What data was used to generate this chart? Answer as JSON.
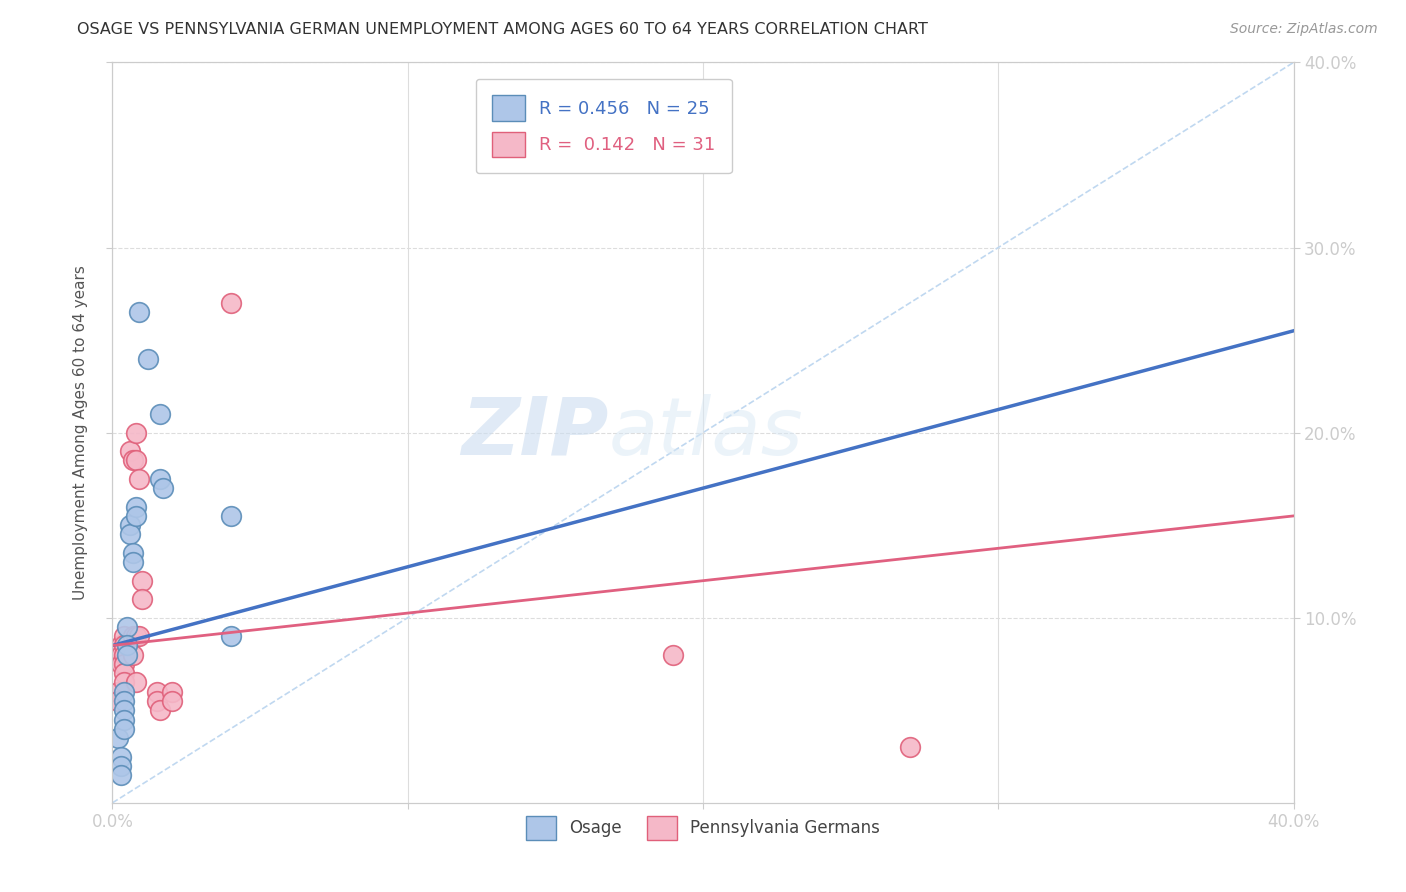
{
  "title": "OSAGE VS PENNSYLVANIA GERMAN UNEMPLOYMENT AMONG AGES 60 TO 64 YEARS CORRELATION CHART",
  "source": "Source: ZipAtlas.com",
  "ylabel": "Unemployment Among Ages 60 to 64 years",
  "xlim": [
    0.0,
    0.4
  ],
  "ylim": [
    0.0,
    0.4
  ],
  "xticks": [
    0.0,
    0.1,
    0.2,
    0.3,
    0.4
  ],
  "yticks": [
    0.1,
    0.2,
    0.3,
    0.4
  ],
  "xticklabels": [
    "0.0%",
    "",
    "",
    "",
    "40.0%"
  ],
  "yticklabels_right": [
    "10.0%",
    "20.0%",
    "30.0%",
    "40.0%"
  ],
  "watermark_zip": "ZIP",
  "watermark_atlas": "atlas",
  "legend_osage_R": "0.456",
  "legend_osage_N": "25",
  "legend_pg_R": "0.142",
  "legend_pg_N": "31",
  "osage_color": "#aec6e8",
  "pg_color": "#f5b8c8",
  "osage_edge_color": "#5b8db8",
  "pg_edge_color": "#e0607a",
  "osage_line_color": "#4472c4",
  "pg_line_color": "#e06080",
  "diag_color": "#c0d8f0",
  "osage_scatter": [
    [
      0.002,
      0.035
    ],
    [
      0.003,
      0.025
    ],
    [
      0.003,
      0.02
    ],
    [
      0.003,
      0.015
    ],
    [
      0.004,
      0.06
    ],
    [
      0.004,
      0.055
    ],
    [
      0.004,
      0.05
    ],
    [
      0.004,
      0.045
    ],
    [
      0.004,
      0.04
    ],
    [
      0.005,
      0.095
    ],
    [
      0.005,
      0.085
    ],
    [
      0.005,
      0.08
    ],
    [
      0.006,
      0.15
    ],
    [
      0.006,
      0.145
    ],
    [
      0.007,
      0.135
    ],
    [
      0.007,
      0.13
    ],
    [
      0.008,
      0.16
    ],
    [
      0.008,
      0.155
    ],
    [
      0.009,
      0.265
    ],
    [
      0.012,
      0.24
    ],
    [
      0.016,
      0.21
    ],
    [
      0.016,
      0.175
    ],
    [
      0.017,
      0.17
    ],
    [
      0.04,
      0.155
    ],
    [
      0.04,
      0.09
    ]
  ],
  "pg_scatter": [
    [
      0.002,
      0.06
    ],
    [
      0.002,
      0.055
    ],
    [
      0.003,
      0.085
    ],
    [
      0.003,
      0.08
    ],
    [
      0.003,
      0.075
    ],
    [
      0.004,
      0.09
    ],
    [
      0.004,
      0.085
    ],
    [
      0.004,
      0.08
    ],
    [
      0.004,
      0.075
    ],
    [
      0.004,
      0.07
    ],
    [
      0.004,
      0.065
    ],
    [
      0.006,
      0.19
    ],
    [
      0.007,
      0.185
    ],
    [
      0.007,
      0.09
    ],
    [
      0.007,
      0.08
    ],
    [
      0.008,
      0.2
    ],
    [
      0.008,
      0.185
    ],
    [
      0.008,
      0.09
    ],
    [
      0.008,
      0.065
    ],
    [
      0.009,
      0.175
    ],
    [
      0.009,
      0.09
    ],
    [
      0.01,
      0.12
    ],
    [
      0.01,
      0.11
    ],
    [
      0.015,
      0.06
    ],
    [
      0.015,
      0.055
    ],
    [
      0.016,
      0.05
    ],
    [
      0.02,
      0.06
    ],
    [
      0.02,
      0.055
    ],
    [
      0.04,
      0.27
    ],
    [
      0.19,
      0.08
    ],
    [
      0.27,
      0.03
    ]
  ],
  "osage_trend_x": [
    0.0,
    0.4
  ],
  "osage_trend_y": [
    0.085,
    0.255
  ],
  "pg_trend_x": [
    0.0,
    0.4
  ],
  "pg_trend_y": [
    0.085,
    0.155
  ]
}
